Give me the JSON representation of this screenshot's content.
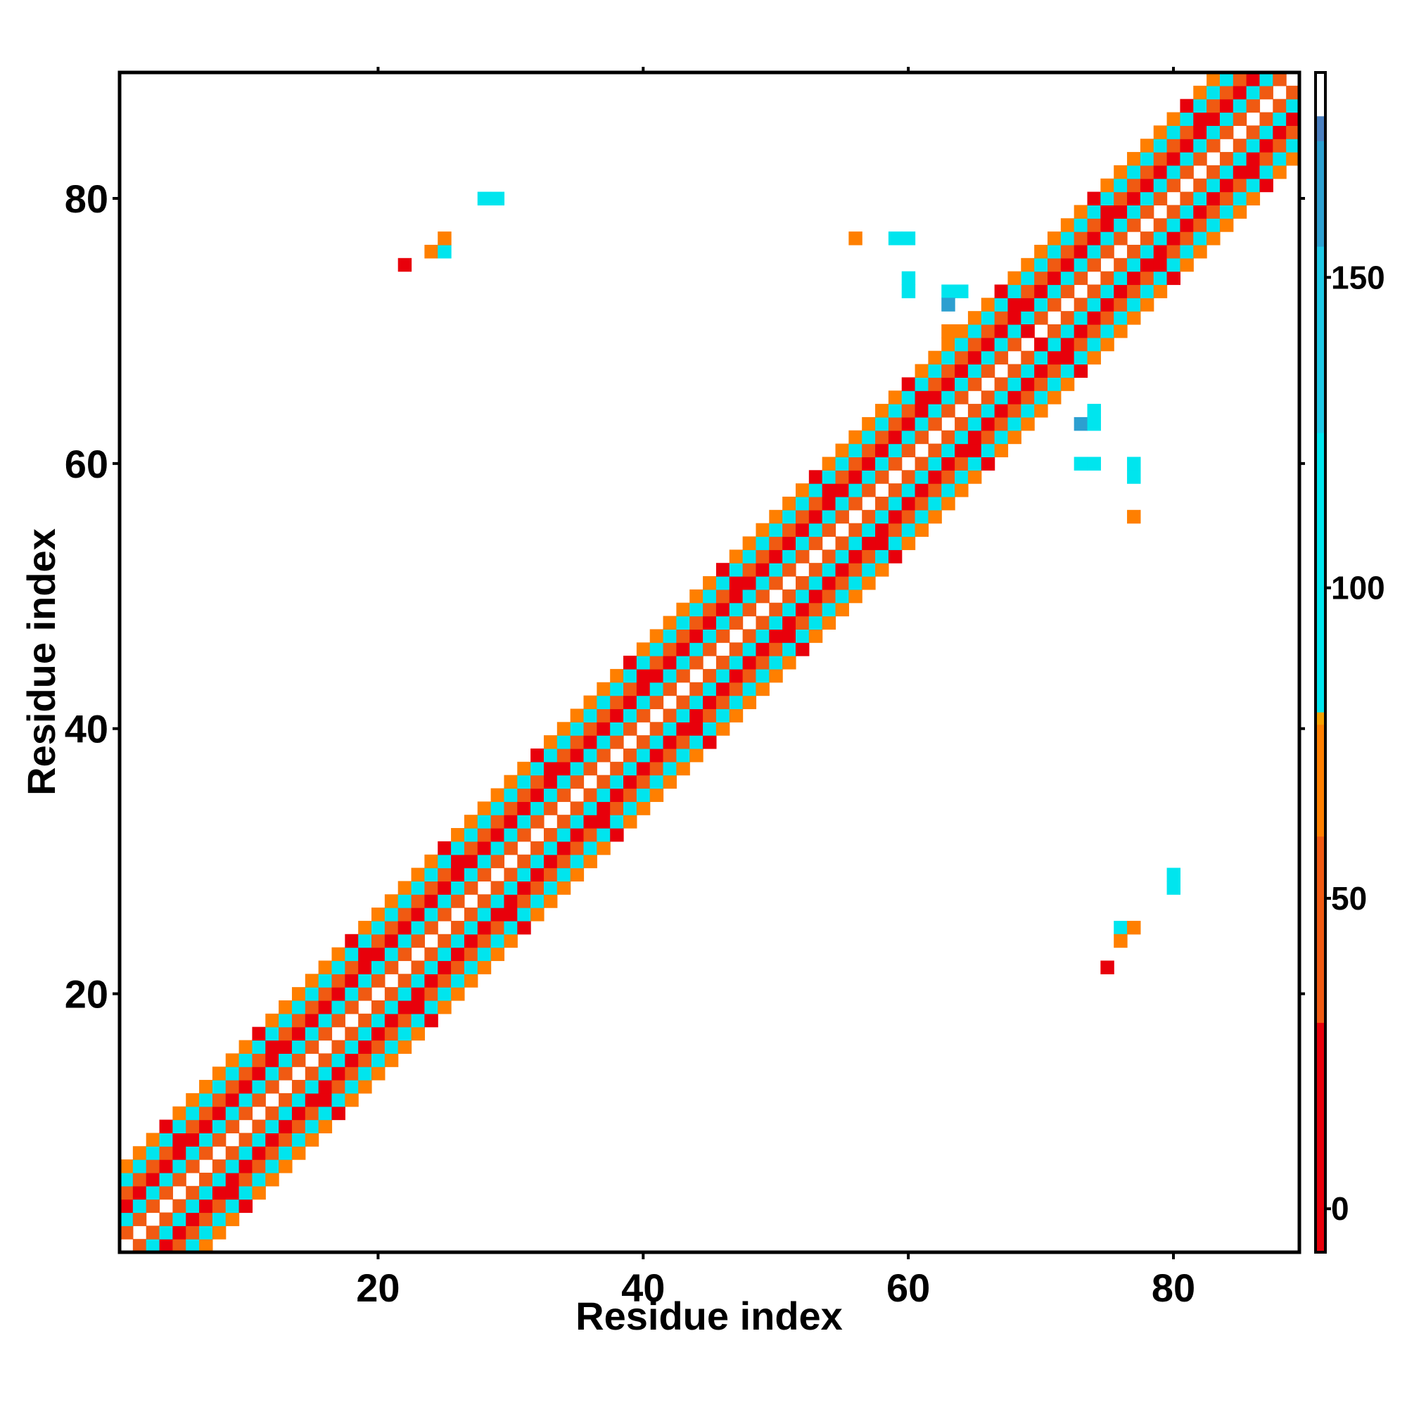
{
  "chart_data": {
    "type": "heatmap",
    "title": "",
    "xlabel": "Residue index",
    "ylabel": "Residue index",
    "xlim": [
      0.5,
      89.5
    ],
    "ylim": [
      0.5,
      89.5
    ],
    "x_ticks": [
      20,
      40,
      60,
      80
    ],
    "y_ticks": [
      20,
      40,
      60,
      80
    ],
    "grid": false,
    "legend": "colorbar-right",
    "colorbar": {
      "range": [
        -7,
        183
      ],
      "ticks": [
        0,
        50,
        100,
        150
      ],
      "stops": [
        {
          "value": -7,
          "color": "#e8000b"
        },
        {
          "value": 30,
          "color": "#f05a12"
        },
        {
          "value": 60,
          "color": "#ff7f00"
        },
        {
          "value": 78,
          "color": "#f5a000"
        },
        {
          "value": 80,
          "color": "#00e5ee"
        },
        {
          "value": 125,
          "color": "#1ec8e6"
        },
        {
          "value": 155,
          "color": "#2c9fd0"
        },
        {
          "value": 172,
          "color": "#4a7fc0"
        },
        {
          "value": 176,
          "color": "#ffffff"
        },
        {
          "value": 183,
          "color": "#ffffff"
        }
      ]
    },
    "band": {
      "description_values": "Contacts near the diagonal; value by offset |i-j|",
      "offset_values": {
        "1": 55,
        "2": 105,
        "3": 20,
        "4": 45,
        "5": 110,
        "6": 65
      },
      "max_offset": 6
    },
    "off_diagonal_cells": [
      {
        "x": 22,
        "y": 75,
        "value": 5
      },
      {
        "x": 24,
        "y": 76,
        "value": 70
      },
      {
        "x": 25,
        "y": 76,
        "value": 100
      },
      {
        "x": 25,
        "y": 77,
        "value": 75
      },
      {
        "x": 28,
        "y": 80,
        "value": 95
      },
      {
        "x": 29,
        "y": 80,
        "value": 95
      },
      {
        "x": 56,
        "y": 77,
        "value": 75
      },
      {
        "x": 59,
        "y": 77,
        "value": 95
      },
      {
        "x": 60,
        "y": 77,
        "value": 95
      },
      {
        "x": 60,
        "y": 74,
        "value": 110
      },
      {
        "x": 60,
        "y": 73,
        "value": 95
      },
      {
        "x": 63,
        "y": 73,
        "value": 110
      },
      {
        "x": 64,
        "y": 73,
        "value": 95
      },
      {
        "x": 63,
        "y": 72,
        "value": 165
      },
      {
        "x": 63,
        "y": 70,
        "value": 75
      },
      {
        "x": 73,
        "y": 63,
        "value": 165
      },
      {
        "x": 74,
        "y": 63,
        "value": 110
      },
      {
        "x": 74,
        "y": 64,
        "value": 95
      },
      {
        "x": 73,
        "y": 60,
        "value": 95
      },
      {
        "x": 74,
        "y": 60,
        "value": 110
      },
      {
        "x": 77,
        "y": 60,
        "value": 95
      },
      {
        "x": 77,
        "y": 59,
        "value": 110
      },
      {
        "x": 77,
        "y": 56,
        "value": 75
      },
      {
        "x": 80,
        "y": 29,
        "value": 95
      },
      {
        "x": 80,
        "y": 28,
        "value": 95
      },
      {
        "x": 76,
        "y": 25,
        "value": 100
      },
      {
        "x": 77,
        "y": 25,
        "value": 75
      },
      {
        "x": 76,
        "y": 24,
        "value": 70
      },
      {
        "x": 75,
        "y": 22,
        "value": 5
      },
      {
        "x": 69,
        "y": 70,
        "value": 5
      },
      {
        "x": 70,
        "y": 69,
        "value": 5
      }
    ]
  }
}
